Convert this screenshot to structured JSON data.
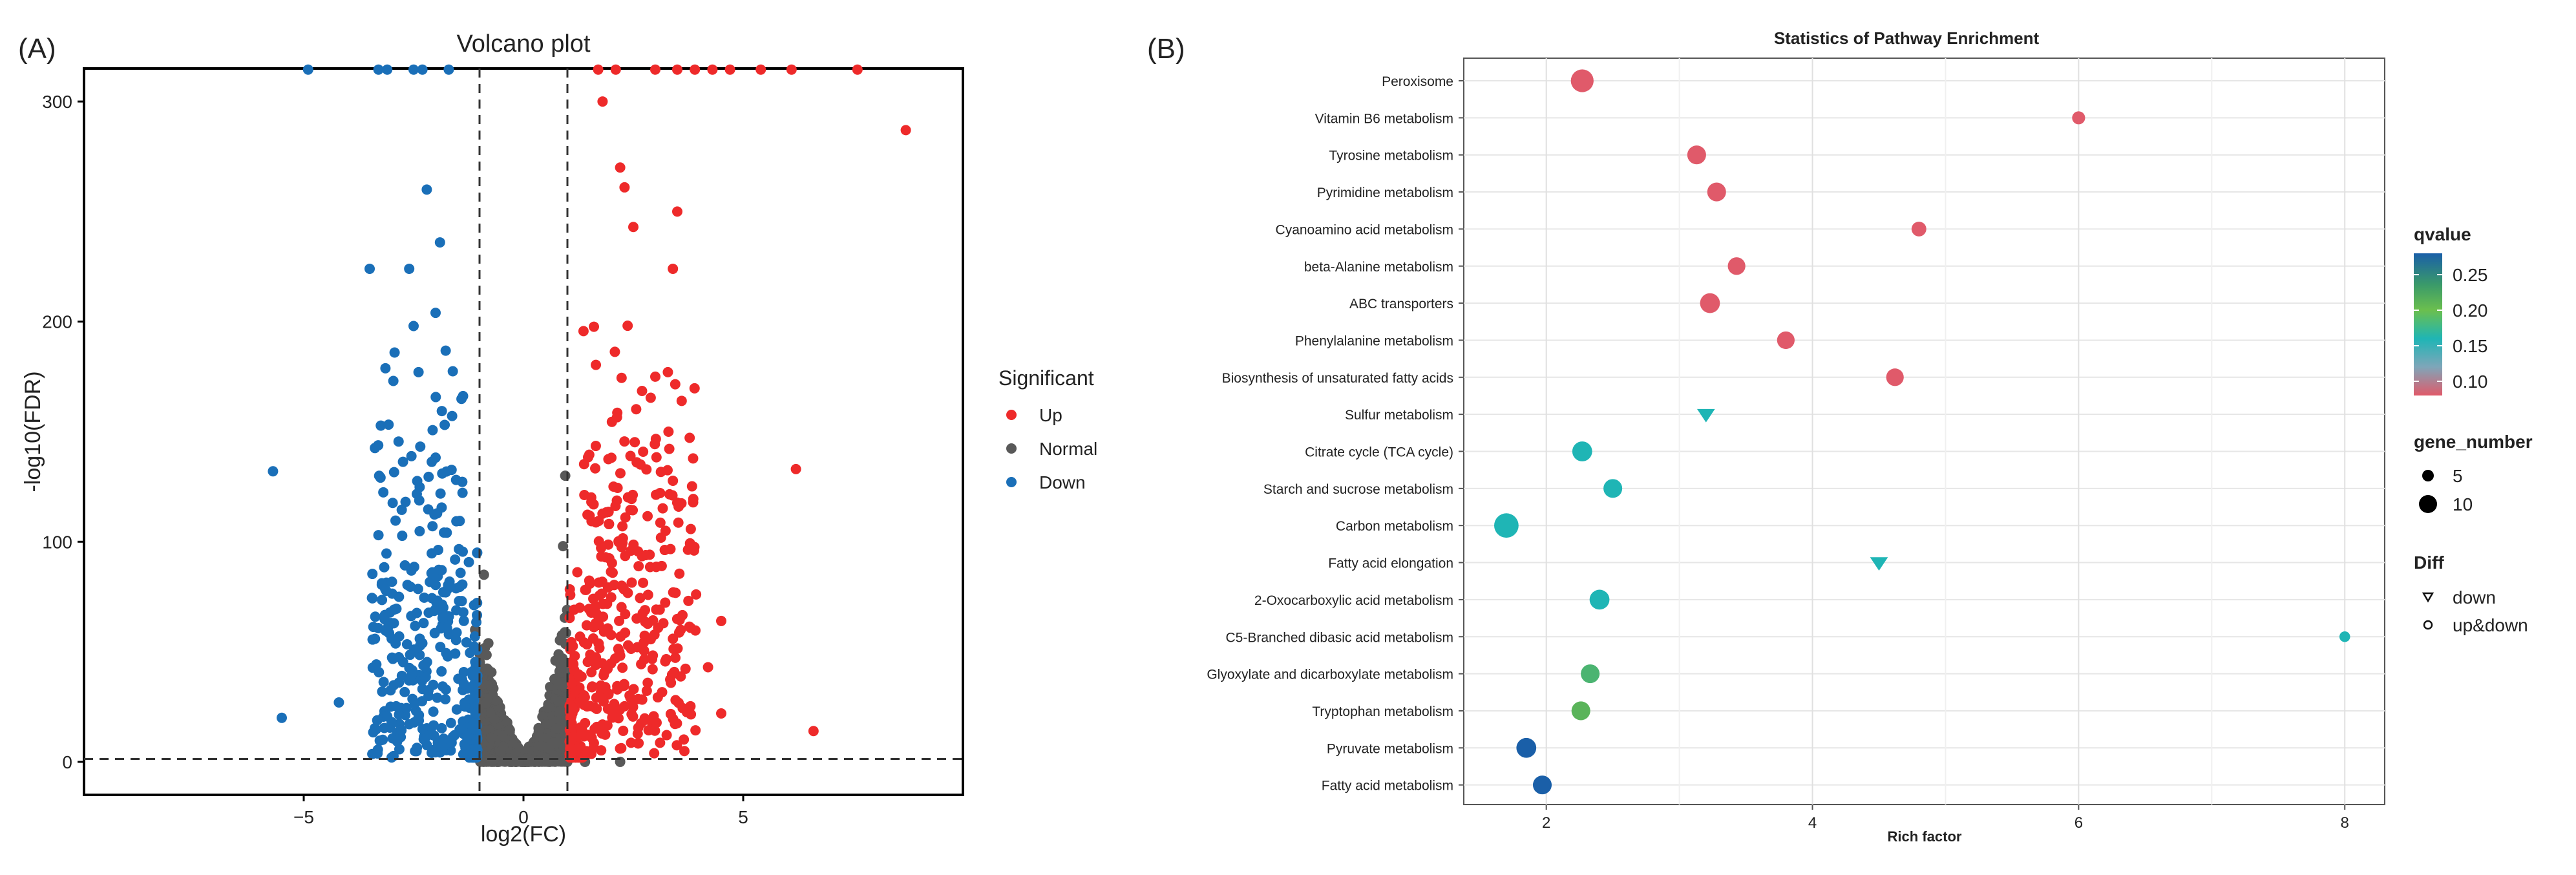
{
  "panelA": {
    "tag": "(A)",
    "chart_data": {
      "type": "scatter",
      "title": "Volcano plot",
      "xlabel": "log2(FC)",
      "ylabel": "-log10(FDR)",
      "xlim": [
        -10,
        10
      ],
      "ylim": [
        -15,
        315
      ],
      "xticks": [
        -5,
        0,
        5
      ],
      "yticks": [
        0,
        100,
        200,
        300
      ],
      "thresholds": {
        "log2fc": [
          -1,
          1
        ],
        "neg_log10_fdr": 1.3
      },
      "legend": {
        "title": "Significant",
        "entries": [
          {
            "label": "Up",
            "color": "#ee2a2a"
          },
          {
            "label": "Normal",
            "color": "#595959"
          },
          {
            "label": "Down",
            "color": "#1a6fb8"
          }
        ]
      },
      "seed": 17,
      "series": [
        {
          "name": "Up",
          "color": "#ee2a2a",
          "count": 420,
          "labeled_points": [
            [
              8.7,
              287
            ],
            [
              6.2,
              133
            ],
            [
              6.6,
              14
            ],
            [
              3.5,
              250
            ],
            [
              3.4,
              224
            ],
            [
              2.2,
              270
            ],
            [
              2.3,
              261
            ],
            [
              1.8,
              300
            ],
            [
              2.5,
              243
            ],
            [
              3.0,
              175
            ],
            [
              3.6,
              164
            ],
            [
              3.3,
              150
            ],
            [
              4.5,
              22
            ],
            [
              4.2,
              43
            ],
            [
              4.5,
              64
            ]
          ]
        },
        {
          "name": "Normal",
          "color": "#595959",
          "count": 1500
        },
        {
          "name": "Down",
          "color": "#1a6fb8",
          "count": 380,
          "labeled_points": [
            [
              -5.7,
              132
            ],
            [
              -5.5,
              20
            ],
            [
              -3.5,
              224
            ],
            [
              -2.6,
              224
            ],
            [
              -2.2,
              260
            ],
            [
              -1.9,
              236
            ],
            [
              -2.0,
              204
            ],
            [
              -4.2,
              27
            ],
            [
              -3.0,
              56
            ],
            [
              -3.3,
              103
            ],
            [
              -2.5,
              198
            ],
            [
              -3.0,
              2
            ]
          ]
        }
      ],
      "top_edge_points": {
        "Down": [
          -4.9,
          -3.3,
          -3.1,
          -2.5,
          -2.3,
          -1.7
        ],
        "Up": [
          1.7,
          2.1,
          3.0,
          3.5,
          3.9,
          4.3,
          4.7,
          5.4,
          6.1,
          7.6
        ]
      }
    }
  },
  "panelB": {
    "tag": "(B)",
    "chart_data": {
      "type": "scatter",
      "title": "Statistics of Pathway Enrichment",
      "xlabel": "Rich factor",
      "ylabel": "",
      "xlim": [
        1.38,
        8.3
      ],
      "xticks": [
        2,
        4,
        6,
        8
      ],
      "pathways": [
        {
          "name": "Peroxisome",
          "rich_factor": 2.27,
          "qvalue": 0.09,
          "gene_number": 10,
          "diff": "up&down"
        },
        {
          "name": "Vitamin B6 metabolism",
          "rich_factor": 6.0,
          "qvalue": 0.09,
          "gene_number": 2,
          "diff": "up&down"
        },
        {
          "name": "Tyrosine metabolism",
          "rich_factor": 3.13,
          "qvalue": 0.09,
          "gene_number": 6,
          "diff": "up&down"
        },
        {
          "name": "Pyrimidine metabolism",
          "rich_factor": 3.28,
          "qvalue": 0.09,
          "gene_number": 6,
          "diff": "up&down"
        },
        {
          "name": "Cyanoamino acid metabolism",
          "rich_factor": 4.8,
          "qvalue": 0.09,
          "gene_number": 3,
          "diff": "up&down"
        },
        {
          "name": "beta-Alanine metabolism",
          "rich_factor": 3.43,
          "qvalue": 0.09,
          "gene_number": 5,
          "diff": "up&down"
        },
        {
          "name": "ABC transporters",
          "rich_factor": 3.23,
          "qvalue": 0.09,
          "gene_number": 7,
          "diff": "up&down"
        },
        {
          "name": "Phenylalanine metabolism",
          "rich_factor": 3.8,
          "qvalue": 0.09,
          "gene_number": 5,
          "diff": "up&down"
        },
        {
          "name": "Biosynthesis of unsaturated fatty acids",
          "rich_factor": 4.62,
          "qvalue": 0.09,
          "gene_number": 5,
          "diff": "up&down"
        },
        {
          "name": "Sulfur metabolism",
          "rich_factor": 3.2,
          "qvalue": 0.16,
          "gene_number": 4,
          "diff": "down"
        },
        {
          "name": "Citrate cycle (TCA cycle)",
          "rich_factor": 2.27,
          "qvalue": 0.16,
          "gene_number": 7,
          "diff": "up&down"
        },
        {
          "name": "Starch and sucrose metabolism",
          "rich_factor": 2.5,
          "qvalue": 0.16,
          "gene_number": 6,
          "diff": "up&down"
        },
        {
          "name": "Carbon metabolism",
          "rich_factor": 1.7,
          "qvalue": 0.16,
          "gene_number": 12,
          "diff": "up&down"
        },
        {
          "name": "Fatty acid elongation",
          "rich_factor": 4.5,
          "qvalue": 0.16,
          "gene_number": 4,
          "diff": "down"
        },
        {
          "name": "2-Oxocarboxylic acid metabolism",
          "rich_factor": 2.4,
          "qvalue": 0.16,
          "gene_number": 7,
          "diff": "up&down"
        },
        {
          "name": "C5-Branched dibasic acid metabolism",
          "rich_factor": 8.0,
          "qvalue": 0.16,
          "gene_number": 1,
          "diff": "up&down"
        },
        {
          "name": "Glyoxylate and dicarboxylate metabolism",
          "rich_factor": 2.33,
          "qvalue": 0.19,
          "gene_number": 6,
          "diff": "up&down"
        },
        {
          "name": "Tryptophan metabolism",
          "rich_factor": 2.26,
          "qvalue": 0.2,
          "gene_number": 6,
          "diff": "up&down"
        },
        {
          "name": "Pyruvate metabolism",
          "rich_factor": 1.85,
          "qvalue": 0.27,
          "gene_number": 7,
          "diff": "up&down"
        },
        {
          "name": "Fatty acid metabolism",
          "rich_factor": 1.97,
          "qvalue": 0.27,
          "gene_number": 6,
          "diff": "up&down"
        }
      ],
      "legend_qvalue": {
        "title": "qvalue",
        "ticks": [
          "0.25",
          "0.20",
          "0.15",
          "0.10"
        ],
        "tick_values": [
          0.25,
          0.2,
          0.15,
          0.1
        ],
        "range": [
          0.08,
          0.28
        ]
      },
      "legend_gene_number": {
        "title": "gene_number",
        "entries": [
          {
            "label": "5",
            "value": 5
          },
          {
            "label": "10",
            "value": 10
          }
        ]
      },
      "legend_diff": {
        "title": "Diff",
        "entries": [
          {
            "label": "down",
            "shape": "triangle"
          },
          {
            "label": "up&down",
            "shape": "circle"
          }
        ]
      }
    }
  }
}
